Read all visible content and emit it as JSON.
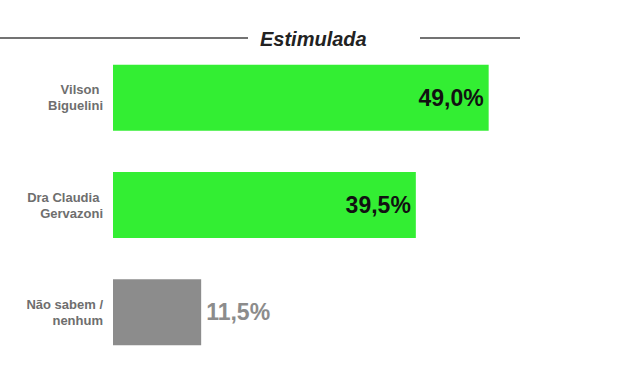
{
  "chart_data": {
    "type": "bar",
    "title": "Estimulada",
    "orientation": "horizontal",
    "categories": [
      "Vilson Biguelini",
      "Dra Claudia Gervazoni",
      "Não sabem /nenhum"
    ],
    "values": [
      49.0,
      39.5,
      11.5
    ],
    "value_labels": [
      "49,0%",
      "39,5%",
      "11,5%"
    ],
    "colors": [
      "#33ee33",
      "#33ee33",
      "#8c8c8c"
    ],
    "xlim": [
      0,
      60
    ],
    "data_labels": true,
    "tick_labels": "y",
    "grid": false
  }
}
